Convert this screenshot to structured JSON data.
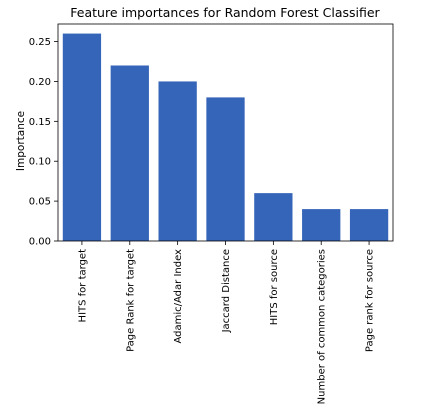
{
  "chart_data": {
    "type": "bar",
    "title": "Feature importances for Random Forest Classifier",
    "xlabel": "",
    "ylabel": "Importance",
    "categories": [
      "HITS for target",
      "Page Rank for target",
      "Adamic/Adar Index",
      "Jaccard Distance",
      "HITS for source",
      "Number of common categories",
      "Page rank for source"
    ],
    "values": [
      0.26,
      0.22,
      0.2,
      0.18,
      0.06,
      0.04,
      0.04
    ],
    "ylim": [
      0,
      0.272
    ],
    "yticks": [
      "0.00",
      "0.05",
      "0.10",
      "0.15",
      "0.20",
      "0.25"
    ],
    "ytick_values": [
      0.0,
      0.05,
      0.1,
      0.15,
      0.2,
      0.25
    ],
    "bar_color": "#3565b8",
    "grid": false,
    "legend": "none"
  }
}
